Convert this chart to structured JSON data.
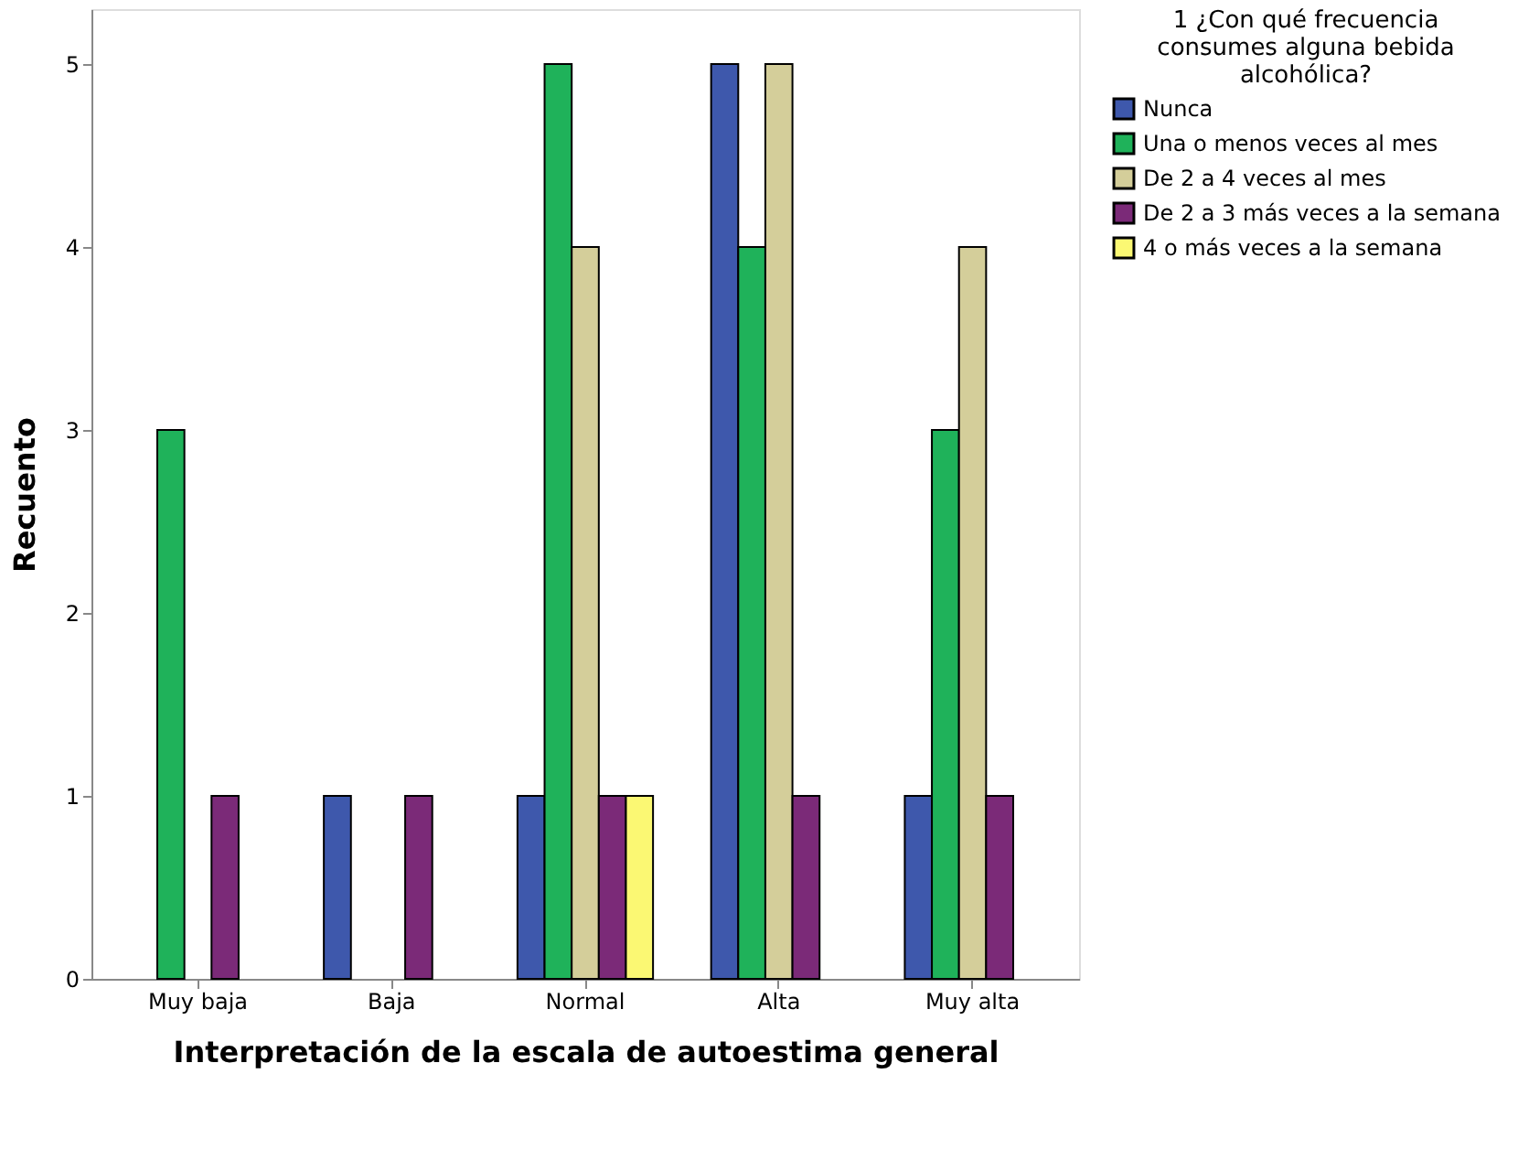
{
  "chart_data": {
    "type": "bar",
    "xlabel": "Interpretación de la escala de autoestima general",
    "ylabel": "Recuento",
    "legend_title": "1 ¿Con qué frecuencia consumes alguna bebida alcohólica?",
    "categories": [
      "Muy baja",
      "Baja",
      "Normal",
      "Alta",
      "Muy alta"
    ],
    "series": [
      {
        "name": "Nunca",
        "color": "#3e58ac",
        "values": [
          null,
          1,
          1,
          5,
          1
        ]
      },
      {
        "name": "Una o menos veces al mes",
        "color": "#1fb25a",
        "values": [
          3,
          null,
          5,
          4,
          3
        ]
      },
      {
        "name": "De 2 a 4 veces al mes",
        "color": "#d4ce9a",
        "values": [
          null,
          null,
          4,
          5,
          4
        ]
      },
      {
        "name": "De 2 a 3 más veces a la semana",
        "color": "#7b2a78",
        "values": [
          1,
          1,
          1,
          1,
          1
        ]
      },
      {
        "name": "4 o más veces a la semana",
        "color": "#fbf873",
        "values": [
          null,
          null,
          1,
          null,
          null
        ]
      }
    ],
    "ylim": [
      0,
      5.3
    ],
    "yticks": [
      0,
      1,
      2,
      3,
      4,
      5
    ],
    "grid": false,
    "legend": "top right"
  }
}
